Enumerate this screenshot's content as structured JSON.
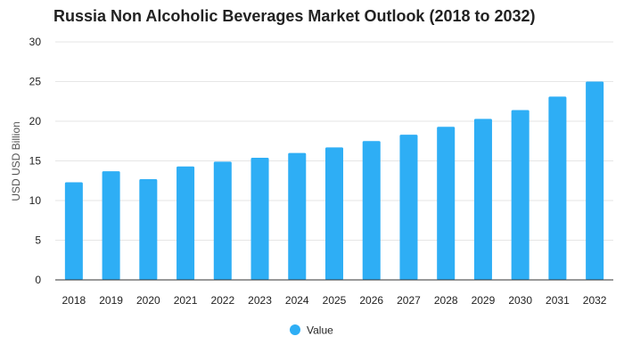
{
  "chart_data": {
    "type": "bar",
    "title": "Russia Non Alcoholic Beverages Market Outlook (2018 to 2032)",
    "xlabel": "",
    "ylabel": "USD USD Billion",
    "categories": [
      "2018",
      "2019",
      "2020",
      "2021",
      "2022",
      "2023",
      "2024",
      "2025",
      "2026",
      "2027",
      "2028",
      "2029",
      "2030",
      "2031",
      "2032"
    ],
    "series": [
      {
        "name": "Value",
        "color": "#2eaef5",
        "values": [
          12.3,
          13.7,
          12.7,
          14.3,
          14.9,
          15.4,
          16.0,
          16.7,
          17.5,
          18.3,
          19.3,
          20.3,
          21.4,
          23.1,
          25.0
        ]
      }
    ],
    "ylim": [
      0,
      30
    ],
    "yticks": [
      0,
      5,
      10,
      15,
      20,
      25,
      30
    ],
    "grid": true,
    "legend_position": "bottom-center",
    "colors": {
      "bar": "#2eaef5",
      "grid": "#e6e6e6",
      "axis": "#333333",
      "text": "#222222"
    }
  }
}
